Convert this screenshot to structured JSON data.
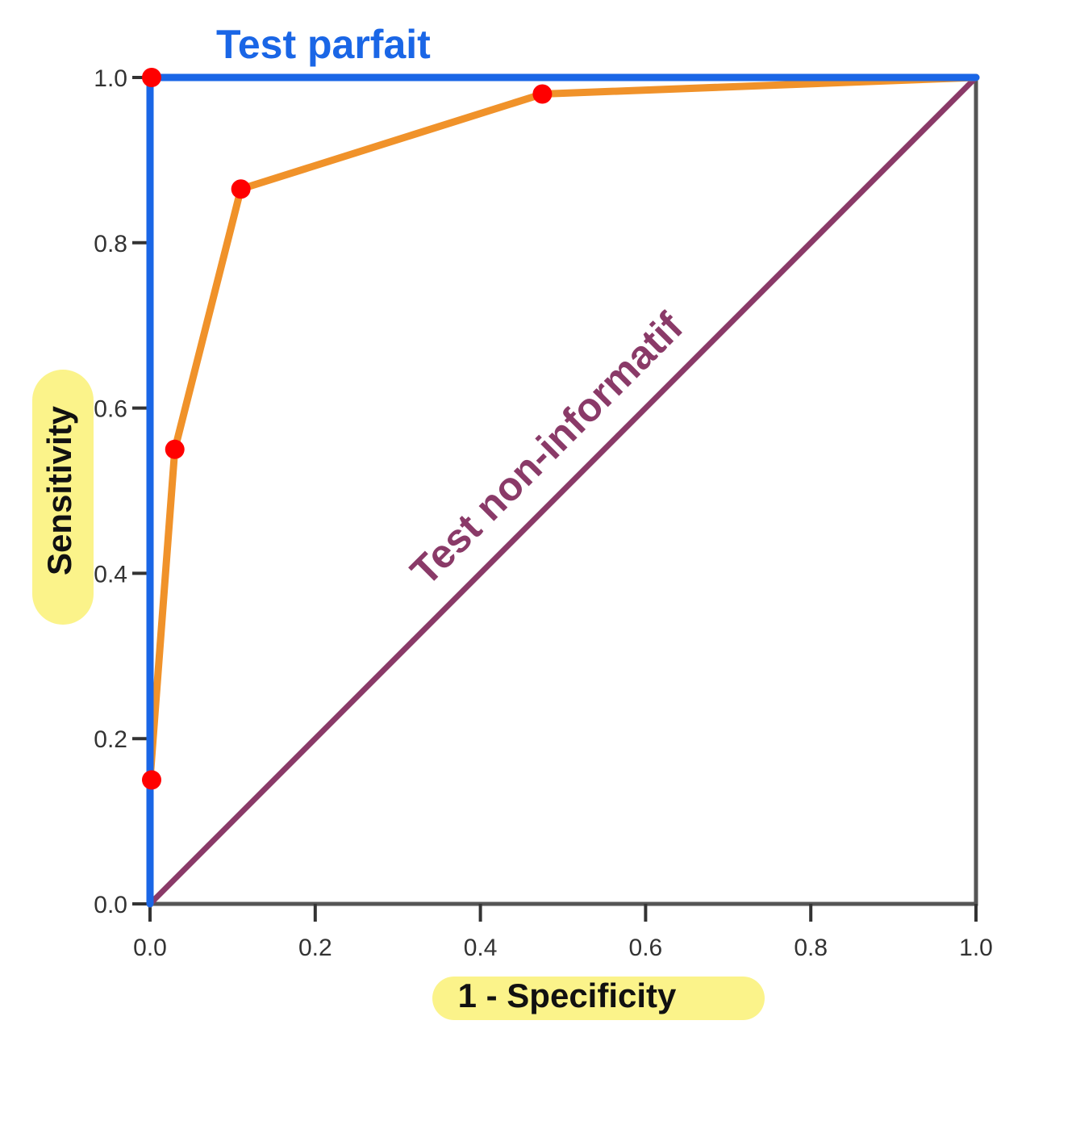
{
  "chart_data": {
    "type": "line",
    "xlabel": "1 - Specificity",
    "ylabel": "Sensitivity",
    "xlim": [
      0,
      1
    ],
    "ylim": [
      0,
      1
    ],
    "x_ticks": [
      "0.0",
      "0.2",
      "0.4",
      "0.6",
      "0.8",
      "1.0"
    ],
    "y_ticks": [
      "0.0",
      "0.2",
      "0.4",
      "0.6",
      "0.8",
      "1.0"
    ],
    "grid": false,
    "legend": "none",
    "series": [
      {
        "color": "#1a66e6",
        "x": [
          0,
          0,
          1
        ],
        "y": [
          0,
          1,
          1
        ]
      },
      {
        "color": "#f0922a",
        "x": [
          0,
          0,
          0.03,
          0.11,
          0.475,
          1
        ],
        "y": [
          0,
          0.15,
          0.55,
          0.865,
          0.98,
          1
        ],
        "marker_color": "#ff0000",
        "markers": [
          0,
          0.15,
          0.55,
          0.865,
          0.98,
          1
        ]
      },
      {
        "color": "#8a3a68",
        "x": [
          0,
          1
        ],
        "y": [
          0,
          1
        ]
      }
    ],
    "points": [
      {
        "x": 0,
        "y": 1.0
      },
      {
        "x": 0.475,
        "y": 0.98
      },
      {
        "x": 0.11,
        "y": 0.865
      },
      {
        "x": 0.03,
        "y": 0.55
      },
      {
        "x": 0,
        "y": 0.15
      }
    ],
    "point_color": "#ff0000",
    "annotations": [
      {
        "text": "Test parfait",
        "color": "#1a66e6"
      },
      {
        "text": "Test non-informatif",
        "color": "#8a3a68"
      }
    ],
    "label_highlight_color": "#fbf38a"
  }
}
